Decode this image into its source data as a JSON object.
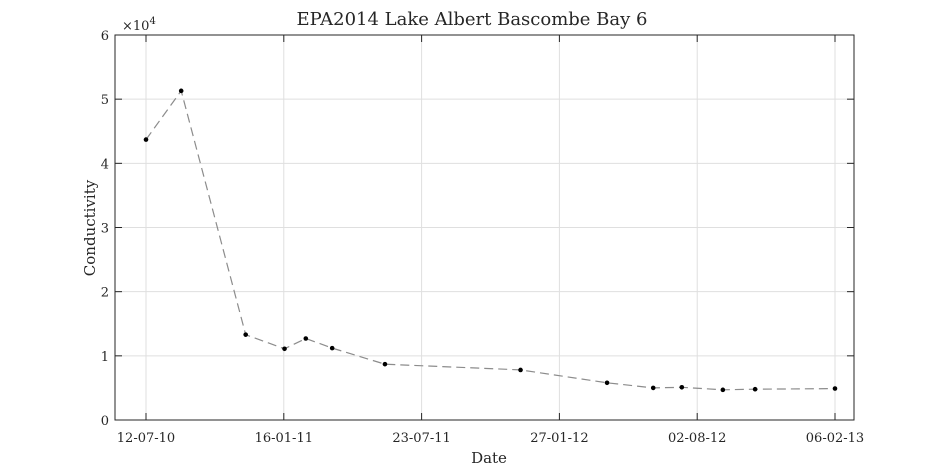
{
  "chart_data": {
    "type": "line",
    "title": "EPA2014 Lake Albert Bascombe Bay 6",
    "xlabel": "Date",
    "ylabel": "Conductivity",
    "y_exponent_label": "×10",
    "y_exponent_power": "4",
    "y_multiplier": 10000,
    "xlim": [
      "2010-07-12",
      "2013-02-06"
    ],
    "ylim": [
      0,
      60000
    ],
    "x_ticks": [
      {
        "date": "2010-07-12",
        "label": "12-07-10"
      },
      {
        "date": "2011-01-16",
        "label": "16-01-11"
      },
      {
        "date": "2011-07-23",
        "label": "23-07-11"
      },
      {
        "date": "2012-01-27",
        "label": "27-01-12"
      },
      {
        "date": "2012-08-02",
        "label": "02-08-12"
      },
      {
        "date": "2013-02-06",
        "label": "06-02-13"
      }
    ],
    "y_ticks": [
      {
        "value": 0,
        "label": "0"
      },
      {
        "value": 10000,
        "label": "1"
      },
      {
        "value": 20000,
        "label": "2"
      },
      {
        "value": 30000,
        "label": "3"
      },
      {
        "value": 40000,
        "label": "4"
      },
      {
        "value": 50000,
        "label": "5"
      },
      {
        "value": 60000,
        "label": "6"
      }
    ],
    "grid": true,
    "series": [
      {
        "style": "dashed gray line with black point markers",
        "line_color": "#8c8c8c",
        "marker_color": "#000000",
        "points": [
          {
            "x": "2010-07-12",
            "y": 43700
          },
          {
            "x": "2010-08-29",
            "y": 51300
          },
          {
            "x": "2010-11-25",
            "y": 13300
          },
          {
            "x": "2011-01-17",
            "y": 11100
          },
          {
            "x": "2011-02-15",
            "y": 12700
          },
          {
            "x": "2011-03-23",
            "y": 11200
          },
          {
            "x": "2011-06-03",
            "y": 8700
          },
          {
            "x": "2011-12-05",
            "y": 7800
          },
          {
            "x": "2012-04-01",
            "y": 5800
          },
          {
            "x": "2012-06-03",
            "y": 5000
          },
          {
            "x": "2012-07-12",
            "y": 5100
          },
          {
            "x": "2012-09-06",
            "y": 4700
          },
          {
            "x": "2012-10-20",
            "y": 4800
          },
          {
            "x": "2013-02-06",
            "y": 4900
          }
        ]
      }
    ]
  }
}
